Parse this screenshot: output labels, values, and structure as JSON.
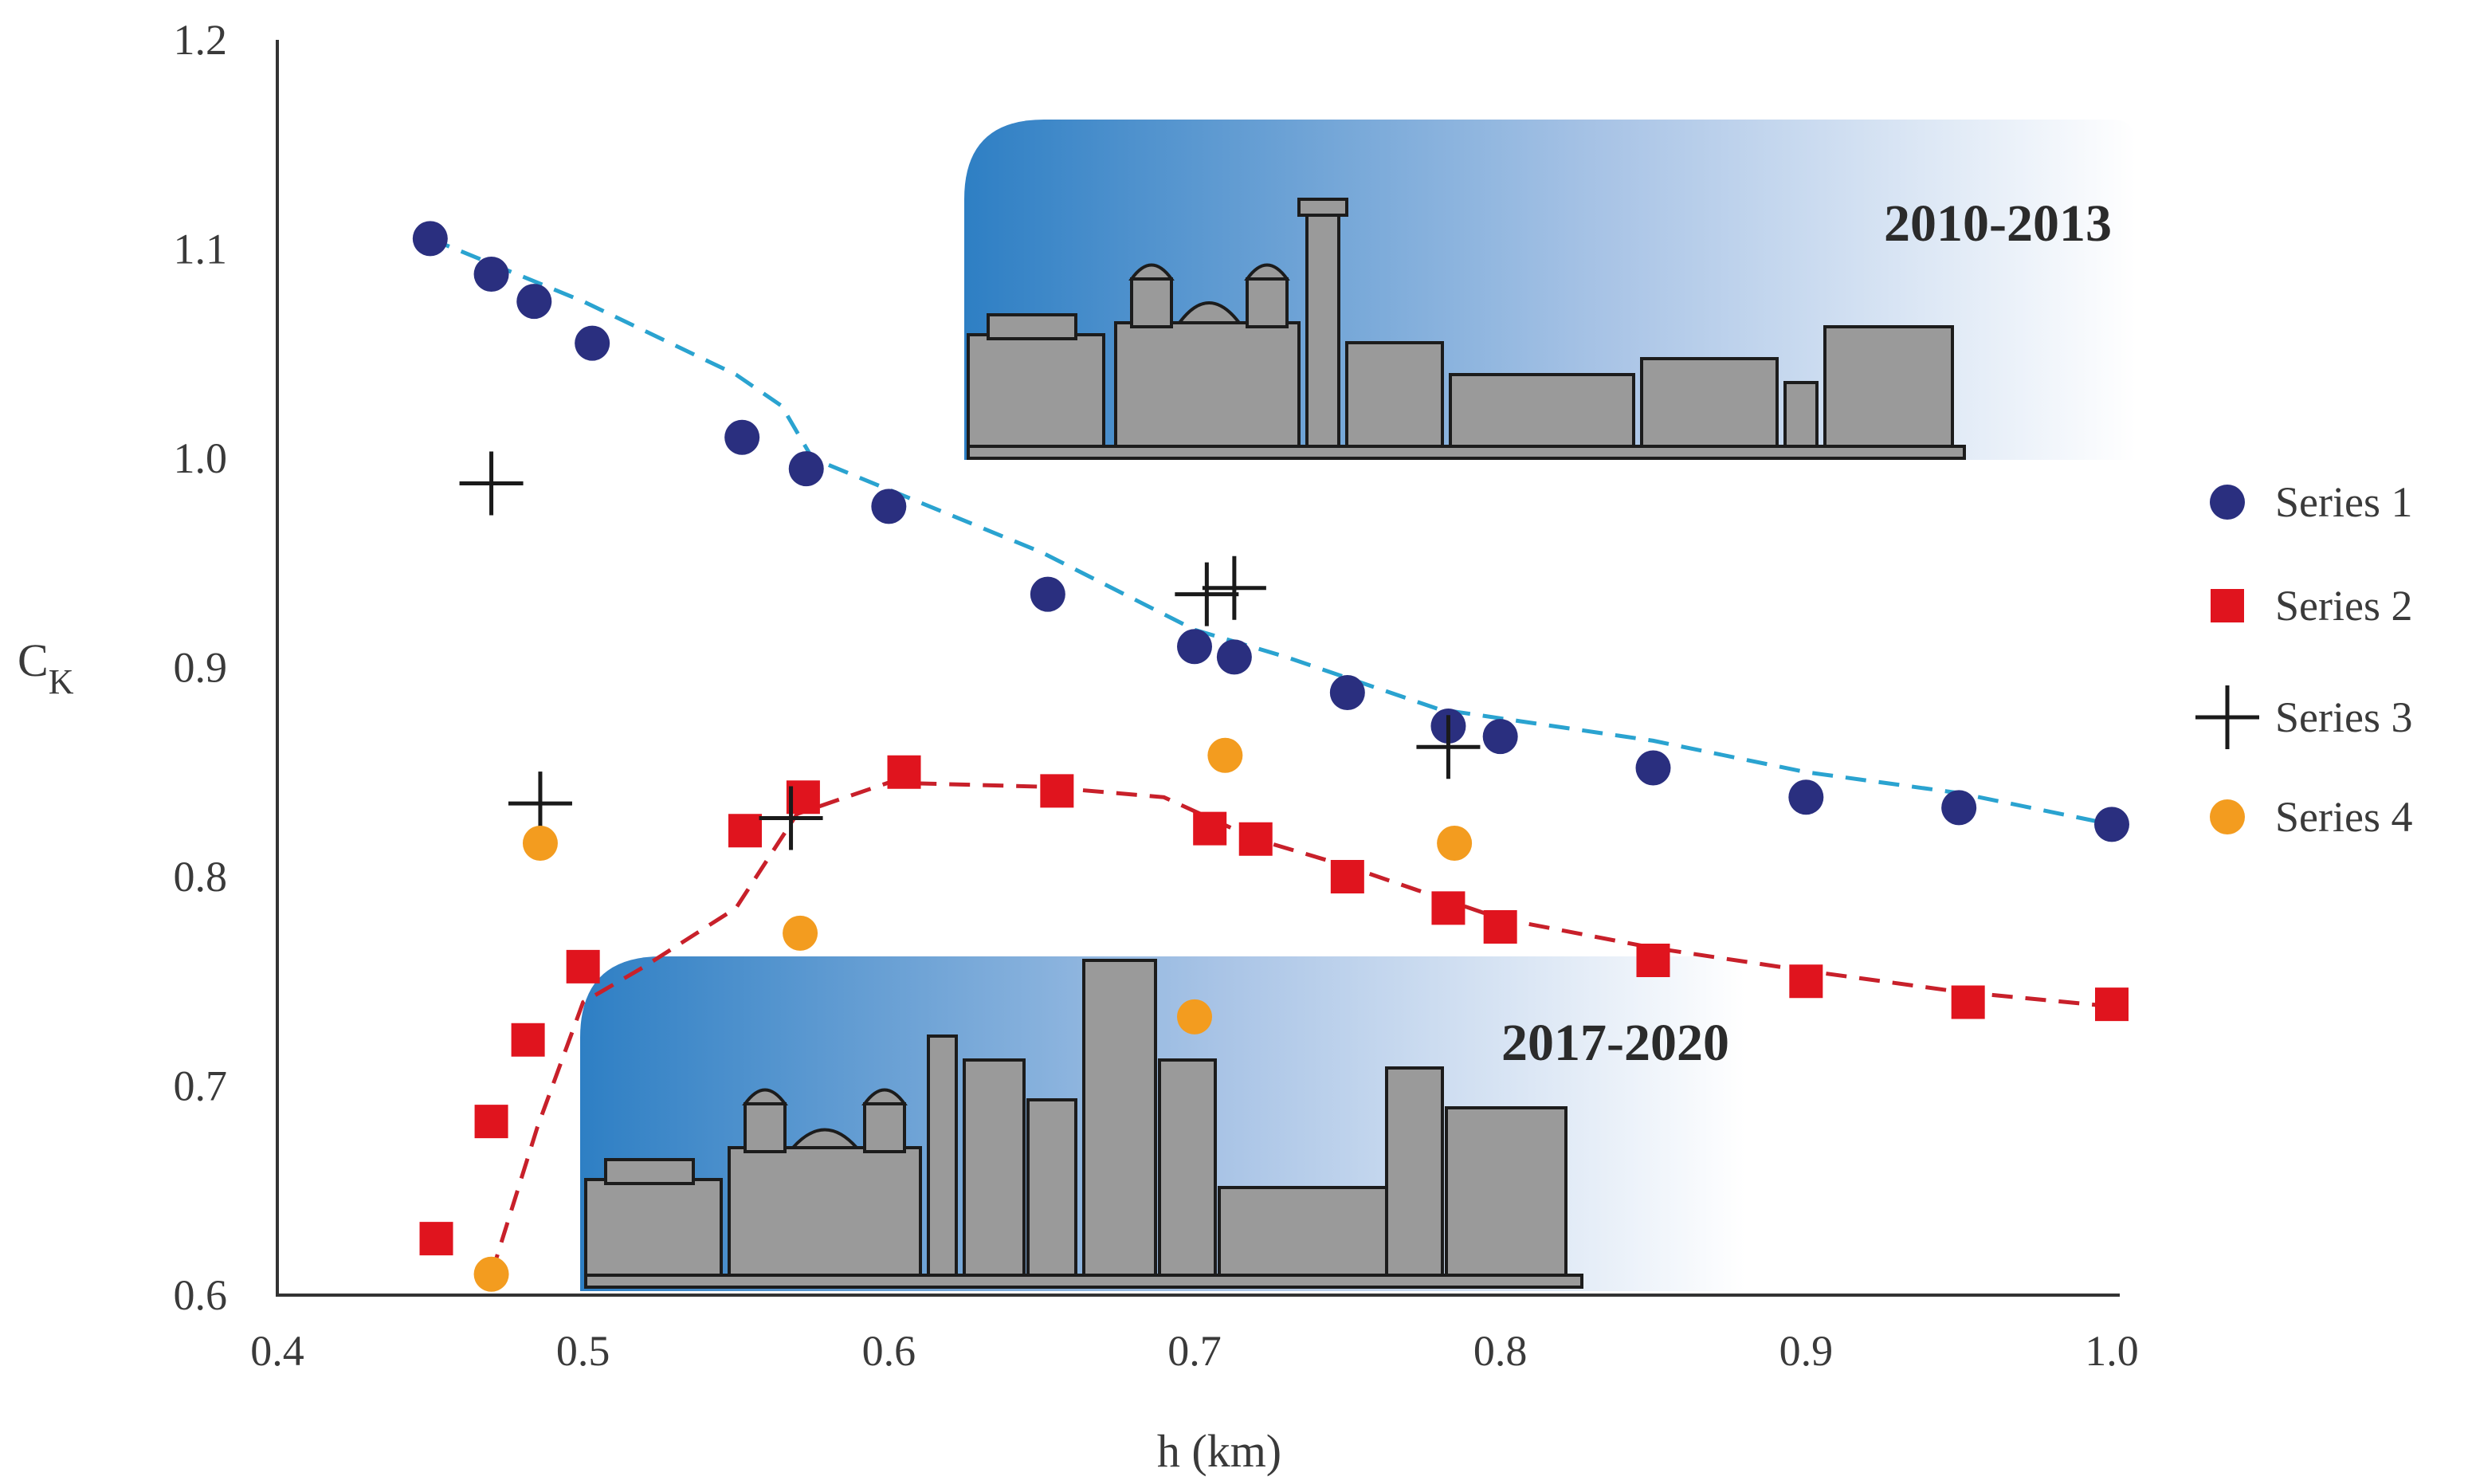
{
  "chart_data": {
    "type": "scatter",
    "title": "",
    "xlabel": "h (km)",
    "ylabel_main": "C",
    "ylabel_sub": "K",
    "xlim": [
      0.4,
      1.0
    ],
    "ylim": [
      0.6,
      1.2
    ],
    "xticks": [
      0.4,
      0.5,
      0.6,
      0.7,
      0.8,
      0.9,
      1.0
    ],
    "xtick_labels": [
      "0.4",
      "0.5",
      "0.6",
      "0.7",
      "0.8",
      "0.9",
      "1.0"
    ],
    "yticks": [
      0.6,
      0.7,
      0.8,
      0.9,
      1.0,
      1.1,
      1.2
    ],
    "ytick_labels": [
      "0.6",
      "0.7",
      "0.8",
      "0.9",
      "1.0",
      "1.1",
      "1.2"
    ],
    "grid": false,
    "legend_position": "right",
    "series": [
      {
        "name": "Series 1",
        "marker": "circle",
        "color": "#2a2f7f",
        "x": [
          0.45,
          0.47,
          0.484,
          0.503,
          0.552,
          0.573,
          0.6,
          0.652,
          0.7,
          0.713,
          0.75,
          0.783,
          0.8,
          0.85,
          0.9,
          0.95,
          1.0
        ],
        "y": [
          1.105,
          1.088,
          1.075,
          1.055,
          1.01,
          0.995,
          0.977,
          0.935,
          0.91,
          0.905,
          0.888,
          0.872,
          0.867,
          0.852,
          0.838,
          0.833,
          0.825
        ]
      },
      {
        "name": "Series 2",
        "marker": "square",
        "color": "#e0141e",
        "x": [
          0.452,
          0.47,
          0.482,
          0.5,
          0.553,
          0.572,
          0.605,
          0.655,
          0.705,
          0.72,
          0.75,
          0.783,
          0.8,
          0.85,
          0.9,
          0.953,
          1.0
        ],
        "y": [
          0.627,
          0.683,
          0.722,
          0.757,
          0.822,
          0.838,
          0.85,
          0.841,
          0.823,
          0.818,
          0.8,
          0.785,
          0.776,
          0.76,
          0.75,
          0.74,
          0.739
        ]
      },
      {
        "name": "Series 3",
        "marker": "plus",
        "color": "#1a1a1a",
        "x": [
          0.47,
          0.486,
          0.568,
          0.704,
          0.713,
          0.783
        ],
        "y": [
          0.988,
          0.835,
          0.828,
          0.935,
          0.938,
          0.862
        ]
      },
      {
        "name": "Series 4",
        "marker": "circle",
        "color": "#f39c1f",
        "x": [
          0.47,
          0.486,
          0.571,
          0.7,
          0.71,
          0.785
        ],
        "y": [
          0.61,
          0.816,
          0.773,
          0.733,
          0.858,
          0.816
        ]
      }
    ],
    "trend_lines": [
      {
        "name": "Series 1 trend",
        "style": "dashed",
        "color": "#2aa3d0",
        "x": [
          0.45,
          0.5,
          0.55,
          0.565,
          0.575,
          0.6,
          0.65,
          0.7,
          0.73,
          0.78,
          0.85,
          0.9,
          0.95,
          1.0
        ],
        "y": [
          1.105,
          1.075,
          1.04,
          1.025,
          1.0,
          0.985,
          0.955,
          0.918,
          0.905,
          0.88,
          0.865,
          0.85,
          0.84,
          0.825
        ]
      },
      {
        "name": "Series 2 trend",
        "style": "dashed",
        "color": "#c8202a",
        "x": [
          0.47,
          0.485,
          0.5,
          0.52,
          0.55,
          0.57,
          0.6,
          0.65,
          0.69,
          0.72,
          0.75,
          0.8,
          0.85,
          0.9,
          0.95,
          1.0
        ],
        "y": [
          0.61,
          0.68,
          0.74,
          0.757,
          0.785,
          0.83,
          0.845,
          0.843,
          0.838,
          0.818,
          0.805,
          0.78,
          0.766,
          0.755,
          0.745,
          0.738
        ]
      }
    ],
    "annotations": [
      {
        "label": "2010-2013",
        "panel": "upper"
      },
      {
        "label": "2017-2020",
        "panel": "lower"
      }
    ],
    "colors": {
      "panel_dark": "#2e7fc4",
      "panel_light": "#ffffff",
      "building_fill": "#9a9a9a",
      "building_stroke": "#1c1c1c"
    }
  }
}
